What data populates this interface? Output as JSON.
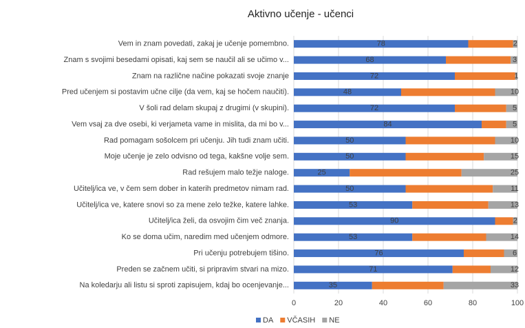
{
  "chart_data": {
    "type": "stacked_barh",
    "title": "Aktivno učenje - učenci",
    "categories": [
      "Vem in znam povedati, zakaj je učenje pomembno.",
      "Znam s svojimi besedami opisati, kaj sem se naučil ali se učimo v...",
      "Znam na različne načine pokazati svoje znanje",
      "Pred učenjem si postavim učne cilje (da vem, kaj se hočem naučiti).",
      "V šoli rad delam skupaj z drugimi (v skupini).",
      "Vem vsaj za dve osebi, ki verjameta vame in mislita, da mi bo v...",
      "Rad pomagam sošolcem pri učenju. Jih tudi znam učiti.",
      "Moje učenje je zelo odvisno od tega, kakšne volje sem.",
      "Rad rešujem malo težje naloge.",
      "Učitelj/ica ve, v čem sem dober in katerih predmetov nimam rad.",
      "Učitelj/ica ve, katere snovi so za mene zelo težke, katere lahke.",
      "Učitelj/ica želi, da osvojim čim več znanja.",
      "Ko se doma učim, naredim med učenjem odmore.",
      "Pri  učenju potrebujem tišino.",
      "Preden se začnem učiti, si pripravim stvari na mizo.",
      "Na koledarju ali listu si sproti zapisujem,  kdaj bo ocenjevanje..."
    ],
    "series": [
      {
        "name": "DA",
        "color": "#4472c4",
        "values": [
          78,
          68,
          72,
          48,
          72,
          84,
          50,
          50,
          25,
          50,
          53,
          90,
          53,
          76,
          71,
          35
        ],
        "labels": true
      },
      {
        "name": "VČASIH",
        "color": "#ed7d31",
        "values": [
          20,
          29,
          27,
          42,
          23,
          11,
          40,
          35,
          50,
          39,
          34,
          8,
          33,
          18,
          17,
          32
        ],
        "labels": false
      },
      {
        "name": "NE",
        "color": "#a5a5a5",
        "values": [
          2,
          3,
          1,
          10,
          5,
          5,
          10,
          15,
          25,
          11,
          13,
          2,
          14,
          6,
          12,
          33
        ],
        "labels": true
      }
    ],
    "xlim": [
      0,
      100
    ],
    "xticks": [
      0,
      20,
      40,
      60,
      80,
      100
    ],
    "grid": true,
    "legend": "bottom"
  }
}
